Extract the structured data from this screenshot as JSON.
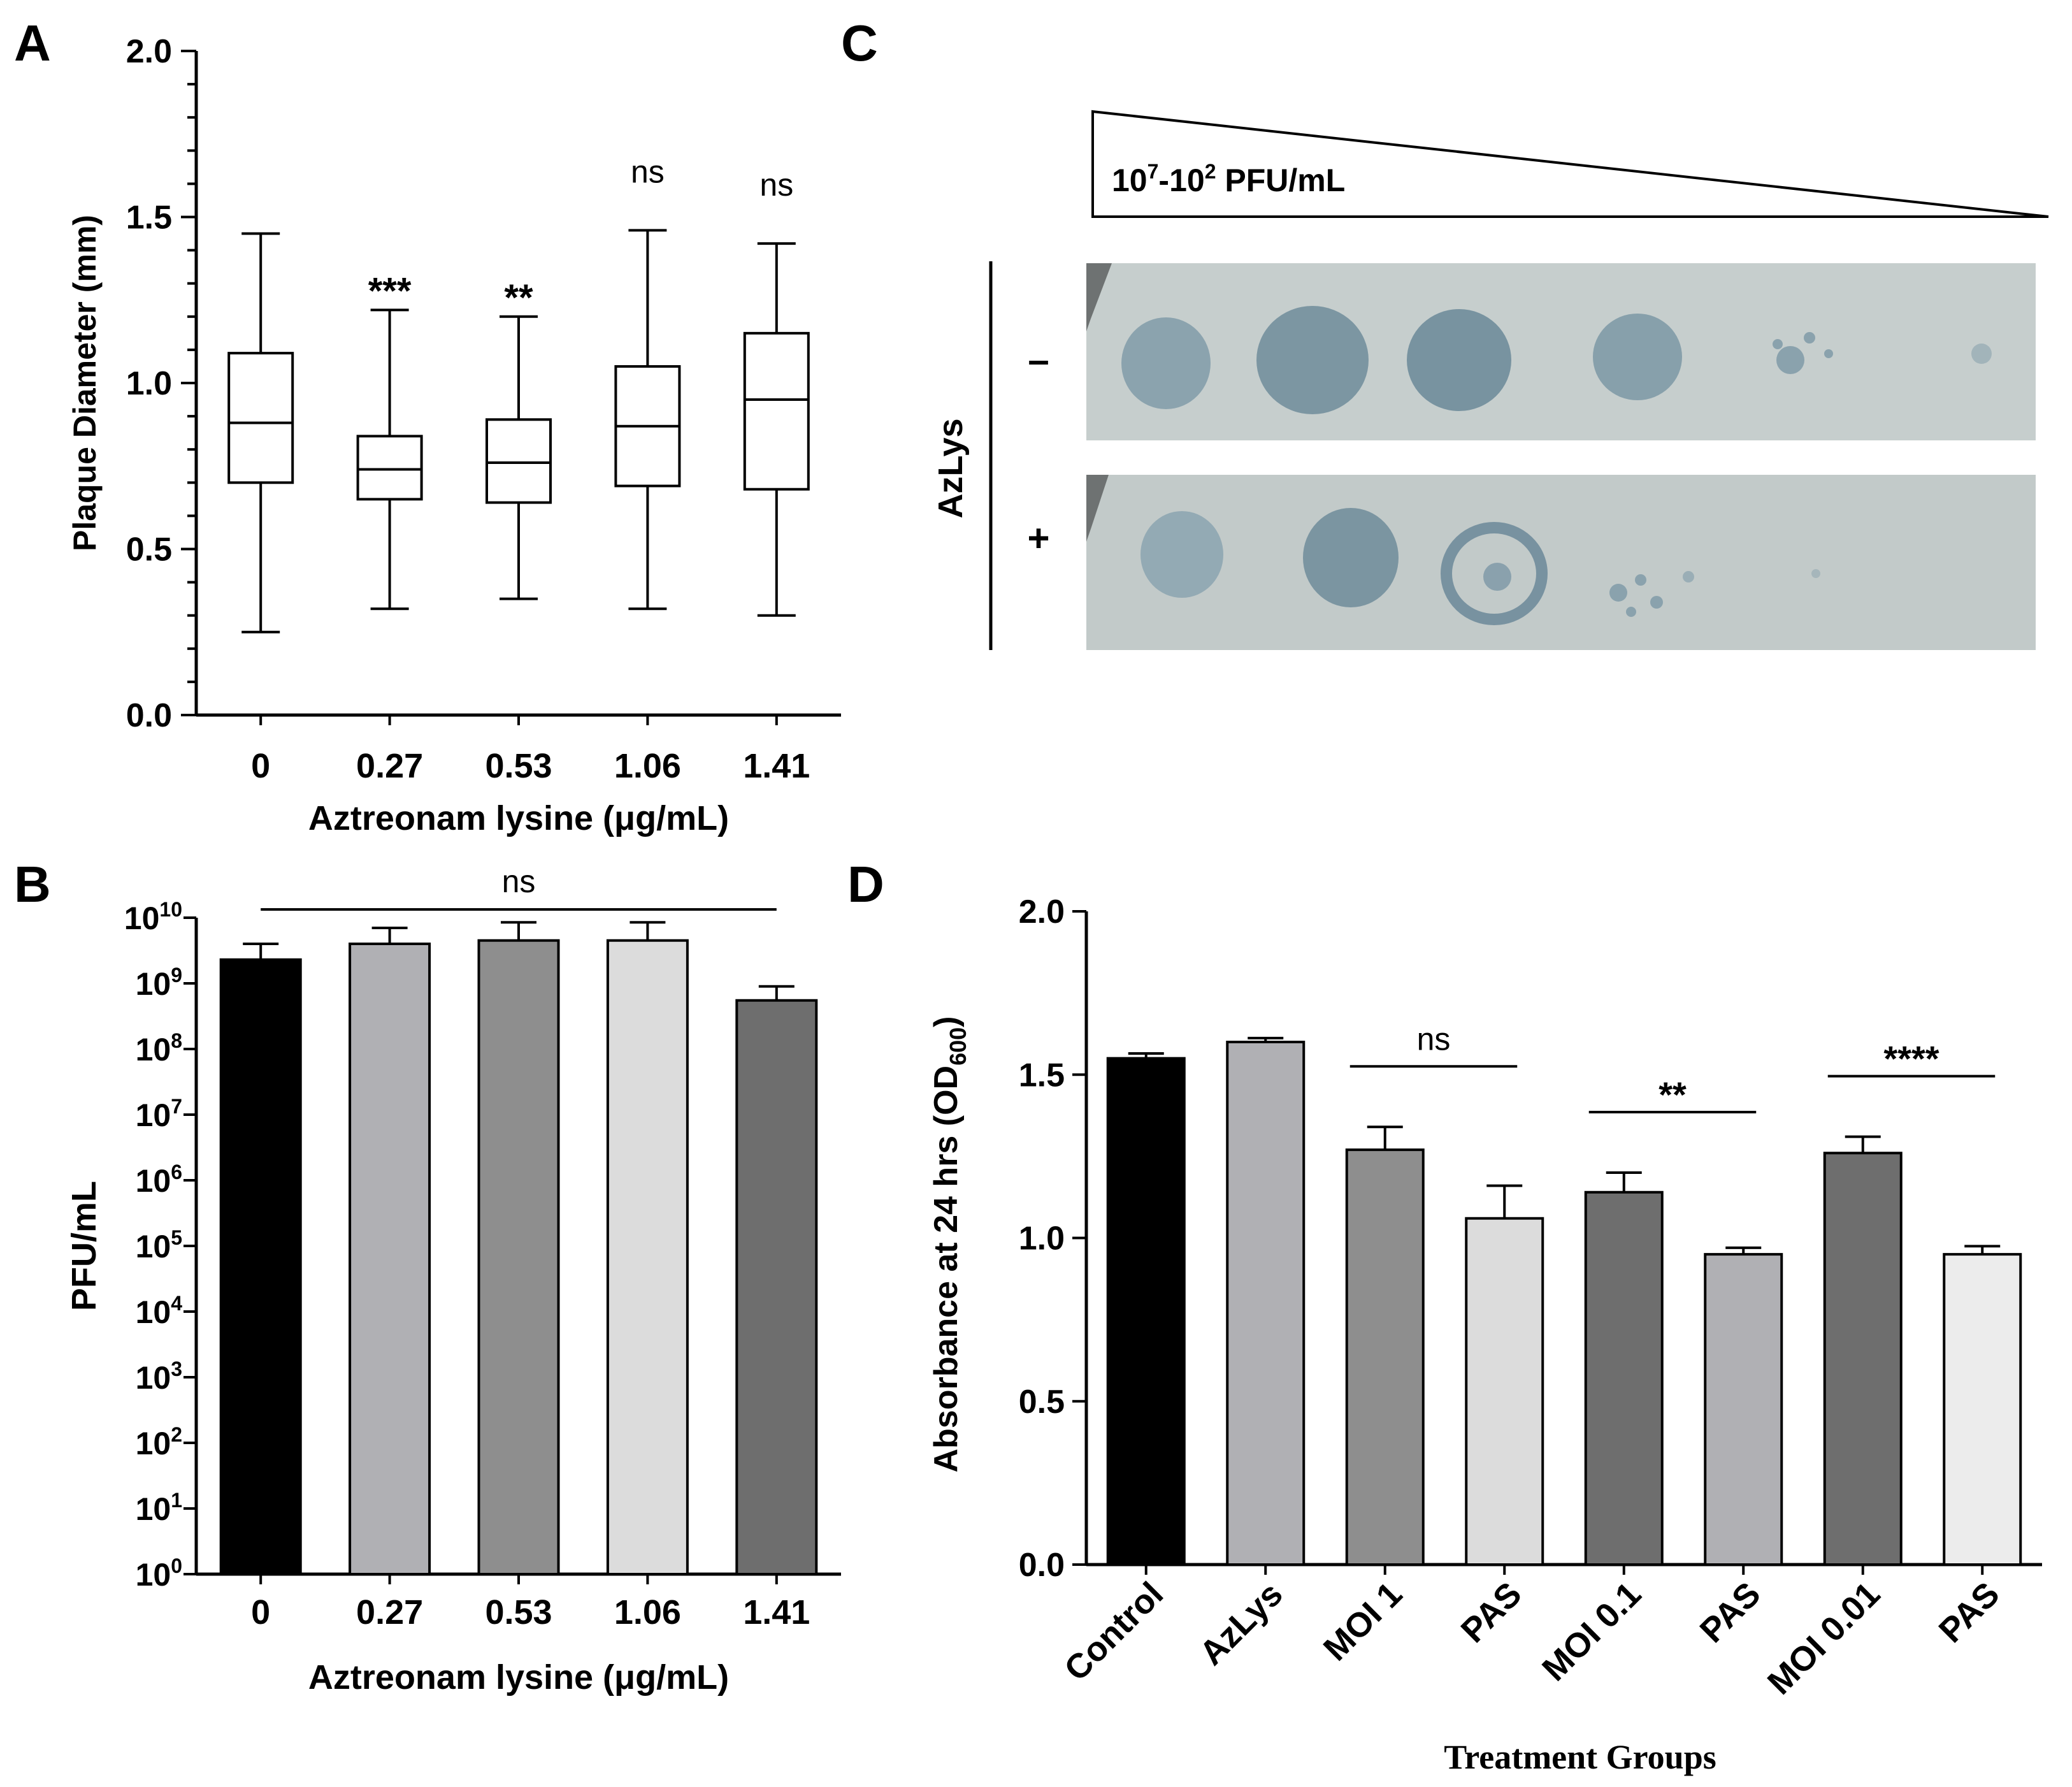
{
  "panel_labels": {
    "a": "A",
    "b": "B",
    "c": "C",
    "d": "D"
  },
  "colors": {
    "black": "#000000",
    "gray1": "#b0b0b4",
    "gray2": "#8e8e8e",
    "gray3": "#dcdcdc",
    "gray4": "#6e6e6e",
    "gray5": "#ececec",
    "plate": "#c4cccc",
    "plaque": "#7f9aa6"
  },
  "chart_data": [
    {
      "panel": "A",
      "type": "box",
      "title": "",
      "xlabel": "Aztreonam lysine (μg/mL)",
      "ylabel": "Plaque Diameter (mm)",
      "ylim": [
        0,
        2.0
      ],
      "yticks": [
        "0.0",
        "0.5",
        "1.0",
        "1.5",
        "2.0"
      ],
      "categories": [
        "0",
        "0.27",
        "0.53",
        "1.06",
        "1.41"
      ],
      "boxes": [
        {
          "min": 0.25,
          "q1": 0.7,
          "median": 0.88,
          "q3": 1.09,
          "max": 1.45
        },
        {
          "min": 0.32,
          "q1": 0.65,
          "median": 0.74,
          "q3": 0.84,
          "max": 1.22
        },
        {
          "min": 0.35,
          "q1": 0.64,
          "median": 0.76,
          "q3": 0.89,
          "max": 1.2
        },
        {
          "min": 0.32,
          "q1": 0.69,
          "median": 0.87,
          "q3": 1.05,
          "max": 1.46
        },
        {
          "min": 0.3,
          "q1": 0.68,
          "median": 0.95,
          "q3": 1.15,
          "max": 1.42
        }
      ],
      "annotations": [
        "",
        "***",
        "**",
        "ns",
        "ns"
      ]
    },
    {
      "panel": "B",
      "type": "bar",
      "yscale": "log",
      "title": "",
      "xlabel": "Aztreonam lysine (μg/mL)",
      "ylabel": "PFU/mL",
      "ylim_exponent": [
        0,
        10
      ],
      "yticks_exponent": [
        "0",
        "1",
        "2",
        "3",
        "4",
        "5",
        "6",
        "7",
        "8",
        "9",
        "10"
      ],
      "ytick_base": "10",
      "categories": [
        "0",
        "0.27",
        "0.53",
        "1.06",
        "1.41"
      ],
      "values": [
        2300000000.0,
        4000000000.0,
        4500000000.0,
        4500000000.0,
        550000000.0
      ],
      "error_upper": [
        4000000000.0,
        7000000000.0,
        8500000000.0,
        8500000000.0,
        900000000.0
      ],
      "colors": [
        "#000000",
        "#b0b0b4",
        "#8e8e8e",
        "#dcdcdc",
        "#6e6e6e"
      ],
      "significance": "ns"
    },
    {
      "panel": "D",
      "type": "bar",
      "title": "",
      "xlabel": "Treatment Groups",
      "ylabel": "Absorbance at 24 hrs (OD",
      "ylabel_sub": "600",
      "ylabel_close": ")",
      "ylim": [
        0,
        2.0
      ],
      "yticks": [
        "0.0",
        "0.5",
        "1.0",
        "1.5",
        "2.0"
      ],
      "categories": [
        "Control",
        "AzLys",
        "MOI 1",
        "PAS",
        "MOI 0.1",
        "PAS",
        "MOI 0.01",
        "PAS"
      ],
      "values": [
        1.55,
        1.6,
        1.27,
        1.06,
        1.14,
        0.95,
        1.26,
        0.95
      ],
      "errors": [
        0.015,
        0.012,
        0.07,
        0.1,
        0.06,
        0.02,
        0.05,
        0.025
      ],
      "colors": [
        "#000000",
        "#b0b0b4",
        "#8e8e8e",
        "#dcdcdc",
        "#6e6e6e",
        "#b0b0b4",
        "#6e6e6e",
        "#ececec"
      ],
      "comparisons": [
        {
          "from": 2,
          "to": 3,
          "label": "ns"
        },
        {
          "from": 4,
          "to": 5,
          "label": "**"
        },
        {
          "from": 6,
          "to": 7,
          "label": "****"
        }
      ]
    }
  ],
  "panel_c": {
    "gradient_label_base1": "10",
    "gradient_label_exp1": "7",
    "gradient_label_mid": "-10",
    "gradient_label_exp2": "2",
    "gradient_label_unit": " PFU/mL",
    "row_title": "AzLys",
    "rows": [
      {
        "sign": "–",
        "spots": [
          "spot",
          "spot",
          "spot",
          "spot",
          "speckled",
          "faint"
        ]
      },
      {
        "sign": "+",
        "spots": [
          "spot",
          "spot",
          "ring",
          "speckled",
          "faint",
          "none"
        ]
      }
    ]
  }
}
